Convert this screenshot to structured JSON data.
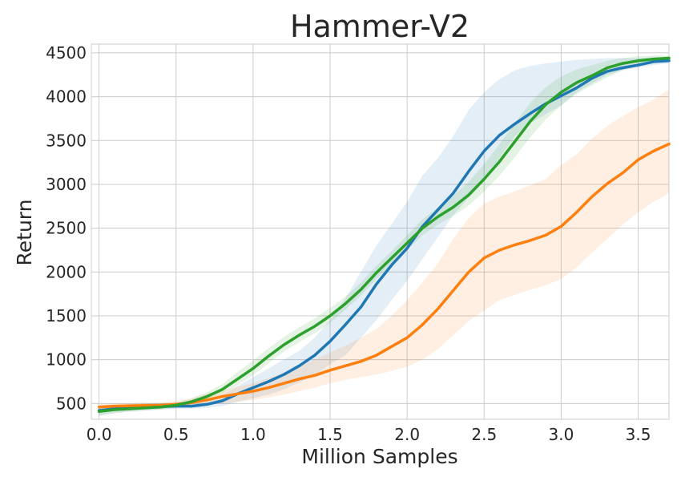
{
  "chart_data": {
    "type": "line",
    "title": "Hammer-V2",
    "xlabel": "Million Samples",
    "ylabel": "Return",
    "xlim": [
      -0.05,
      3.7
    ],
    "ylim": [
      320,
      4600
    ],
    "xticks": [
      0.0,
      0.5,
      1.0,
      1.5,
      2.0,
      2.5,
      3.0,
      3.5
    ],
    "xtick_labels": [
      "0.0",
      "0.5",
      "1.0",
      "1.5",
      "2.0",
      "2.5",
      "3.0",
      "3.5"
    ],
    "yticks": [
      500,
      1000,
      1500,
      2000,
      2500,
      3000,
      3500,
      4000,
      4500
    ],
    "ytick_labels": [
      "500",
      "1000",
      "1500",
      "2000",
      "2500",
      "3000",
      "3500",
      "4000",
      "4500"
    ],
    "grid": true,
    "legend": "none",
    "x": [
      0.0,
      0.1,
      0.2,
      0.3,
      0.4,
      0.5,
      0.6,
      0.7,
      0.8,
      0.9,
      1.0,
      1.1,
      1.2,
      1.3,
      1.4,
      1.5,
      1.6,
      1.7,
      1.8,
      1.9,
      2.0,
      2.1,
      2.2,
      2.3,
      2.4,
      2.5,
      2.6,
      2.7,
      2.8,
      2.9,
      3.0,
      3.1,
      3.2,
      3.3,
      3.4,
      3.5,
      3.6,
      3.7
    ],
    "series": [
      {
        "color": "#1f77b4",
        "values": [
          420,
          440,
          450,
          460,
          465,
          470,
          470,
          490,
          530,
          610,
          680,
          750,
          830,
          930,
          1050,
          1210,
          1400,
          1600,
          1860,
          2080,
          2270,
          2520,
          2710,
          2900,
          3150,
          3380,
          3560,
          3690,
          3810,
          3920,
          4010,
          4100,
          4210,
          4290,
          4330,
          4360,
          4400,
          4410
        ],
        "lower": [
          360,
          390,
          410,
          420,
          430,
          440,
          440,
          450,
          470,
          520,
          560,
          600,
          660,
          740,
          820,
          950,
          1050,
          1250,
          1450,
          1680,
          1900,
          2150,
          2400,
          2650,
          2850,
          3050,
          3300,
          3550,
          3700,
          3800,
          3900,
          4050,
          4150,
          4250,
          4300,
          4330,
          4360,
          4380
        ],
        "upper": [
          470,
          480,
          490,
          500,
          505,
          510,
          520,
          540,
          600,
          700,
          800,
          900,
          1000,
          1100,
          1250,
          1450,
          1700,
          2000,
          2300,
          2550,
          2800,
          3100,
          3300,
          3550,
          3850,
          4050,
          4200,
          4300,
          4350,
          4380,
          4400,
          4420,
          4430,
          4440,
          4440,
          4440,
          4440,
          4440
        ]
      },
      {
        "color": "#ff7f0e",
        "values": [
          460,
          470,
          475,
          478,
          480,
          490,
          510,
          540,
          580,
          610,
          640,
          680,
          730,
          780,
          820,
          880,
          930,
          980,
          1050,
          1150,
          1250,
          1400,
          1580,
          1790,
          2000,
          2160,
          2250,
          2310,
          2360,
          2420,
          2520,
          2680,
          2860,
          3010,
          3130,
          3280,
          3380,
          3460
        ],
        "lower": [
          440,
          450,
          455,
          460,
          460,
          465,
          470,
          480,
          500,
          520,
          540,
          570,
          600,
          640,
          680,
          730,
          770,
          800,
          830,
          870,
          920,
          1000,
          1120,
          1280,
          1440,
          1560,
          1680,
          1740,
          1800,
          1850,
          1920,
          2050,
          2220,
          2380,
          2540,
          2680,
          2800,
          2900
        ],
        "upper": [
          490,
          500,
          505,
          510,
          510,
          530,
          560,
          610,
          650,
          690,
          730,
          790,
          850,
          930,
          1000,
          1080,
          1160,
          1250,
          1350,
          1500,
          1680,
          1880,
          2100,
          2380,
          2620,
          2780,
          2860,
          2920,
          2990,
          3060,
          3220,
          3340,
          3520,
          3670,
          3780,
          3880,
          3970,
          4080
        ]
      },
      {
        "color": "#2ca02c",
        "values": [
          410,
          430,
          440,
          450,
          460,
          480,
          520,
          580,
          660,
          780,
          900,
          1040,
          1170,
          1280,
          1380,
          1500,
          1640,
          1800,
          1990,
          2160,
          2330,
          2500,
          2630,
          2740,
          2880,
          3060,
          3260,
          3490,
          3720,
          3910,
          4050,
          4160,
          4240,
          4330,
          4380,
          4410,
          4430,
          4440
        ],
        "lower": [
          360,
          390,
          410,
          420,
          430,
          450,
          490,
          540,
          610,
          710,
          820,
          960,
          1090,
          1200,
          1300,
          1420,
          1570,
          1730,
          1920,
          2090,
          2250,
          2420,
          2540,
          2640,
          2760,
          2920,
          3100,
          3310,
          3540,
          3740,
          3900,
          4030,
          4130,
          4220,
          4300,
          4350,
          4380,
          4400
        ],
        "upper": [
          460,
          470,
          480,
          490,
          500,
          510,
          560,
          630,
          720,
          860,
          990,
          1130,
          1260,
          1370,
          1470,
          1590,
          1720,
          1880,
          2070,
          2240,
          2420,
          2600,
          2740,
          2870,
          3030,
          3230,
          3460,
          3700,
          3930,
          4110,
          4230,
          4310,
          4360,
          4410,
          4440,
          4460,
          4470,
          4470
        ]
      }
    ]
  }
}
